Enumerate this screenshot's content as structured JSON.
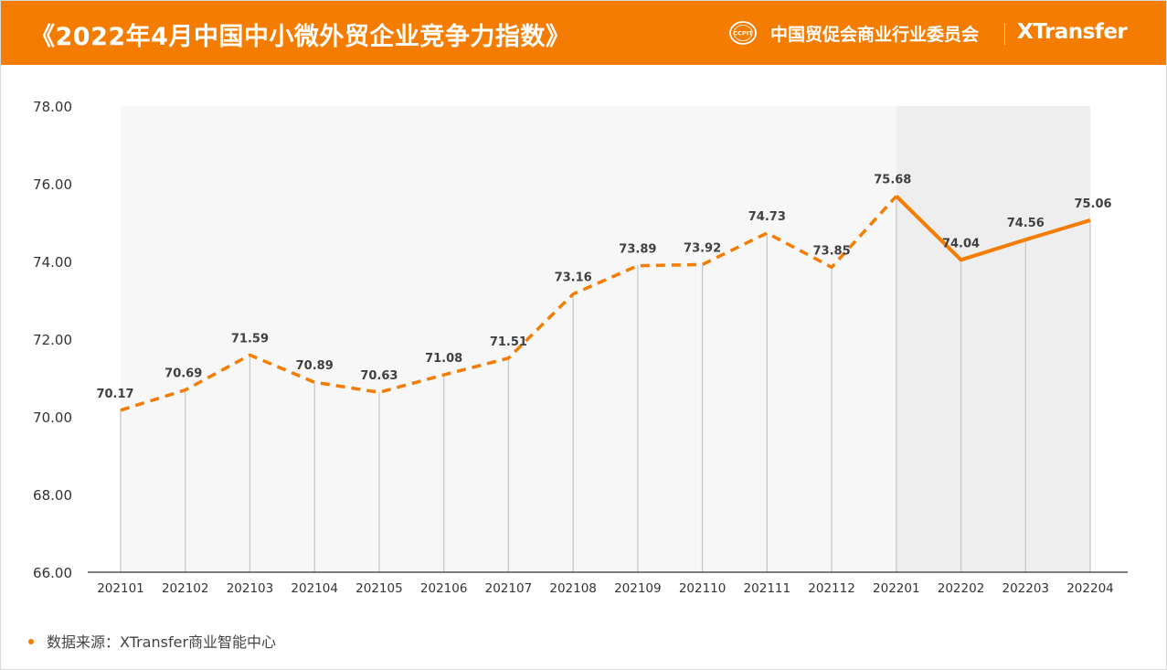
{
  "header": {
    "title": "《2022年4月中国中小微外贸企业竞争力指数》",
    "org": "中国贸促会商业行业委员会",
    "logo_text": "CCPIT",
    "brand": "XTransfer"
  },
  "footer": {
    "source": "数据来源：XTransfer商业智能中心"
  },
  "colors": {
    "accent": "#f47c00",
    "plot_bg": "#f7f7f7",
    "highlight_bg": "#eeeeee",
    "drop_line": "#c8c8c8"
  },
  "chart_data": {
    "type": "line",
    "categories": [
      "202101",
      "202102",
      "202103",
      "202104",
      "202105",
      "202106",
      "202107",
      "202108",
      "202109",
      "202110",
      "202111",
      "202112",
      "202201",
      "202202",
      "202203",
      "202204"
    ],
    "values": [
      70.17,
      70.69,
      71.59,
      70.89,
      70.63,
      71.08,
      71.51,
      73.16,
      73.89,
      73.92,
      74.73,
      73.85,
      75.68,
      74.04,
      74.56,
      75.06
    ],
    "data_labels": [
      "70.17",
      "70.69",
      "71.59",
      "70.89",
      "70.63",
      "71.08",
      "71.51",
      "73.16",
      "73.89",
      "73.92",
      "74.73",
      "73.85",
      "75.68",
      "74.04",
      "74.56",
      "75.06"
    ],
    "line_style": "dashed through 202201, solid from 202201 to 202204",
    "highlight_range": [
      "202201",
      "202204"
    ],
    "ylim": [
      66,
      78
    ],
    "yticks": [
      "66.00",
      "68.00",
      "70.00",
      "72.00",
      "74.00",
      "76.00",
      "78.00"
    ],
    "grid": false,
    "legend": "none"
  }
}
